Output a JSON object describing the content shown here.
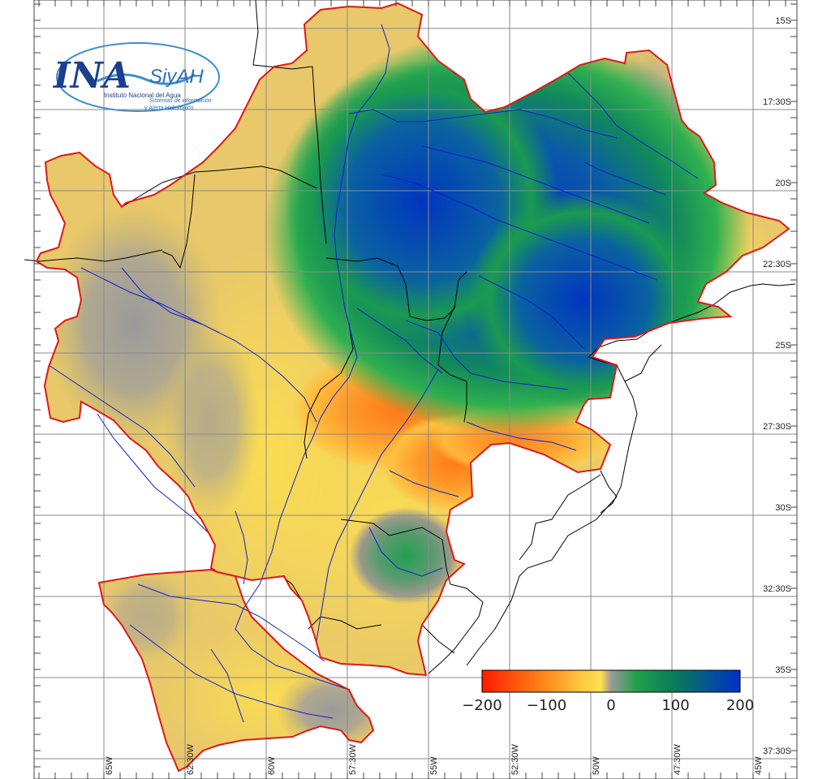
{
  "logo": {
    "name": "INA",
    "system": "SiyAH",
    "institute": "Instituto Nacional del Agua",
    "tagline_1": "Sistemas de información",
    "tagline_2": "y Alerta Hidrológico"
  },
  "latitude_labels": [
    "15S",
    "17:30S",
    "20S",
    "22:30S",
    "25S",
    "27:30S",
    "30S",
    "32:30S",
    "35S",
    "37:30S"
  ],
  "longitude_labels": [
    "65W",
    "62:30W",
    "60W",
    "57:30W",
    "55W",
    "52:30W",
    "50W",
    "47:30W",
    "45W"
  ],
  "colorbar": {
    "min": -200,
    "max": 200,
    "tick_labels": [
      "−200",
      "−100",
      "0",
      "100",
      "200"
    ],
    "colors": [
      "#ff1a00",
      "#ff8c1a",
      "#ffe14d",
      "#9a9a9a",
      "#1fa04a",
      "#0a6e5a",
      "#0030c8"
    ]
  },
  "colors": {
    "positive_max": "#0030c8",
    "positive_mid": "#1a9a48",
    "neutral": "#9c9c9c",
    "negative_mid": "#f5a623",
    "negative_max": "#ff3a00",
    "basin_outline": "#e01818",
    "rivers": "#1020d0",
    "borders": "#000000",
    "grid": "#888888"
  }
}
